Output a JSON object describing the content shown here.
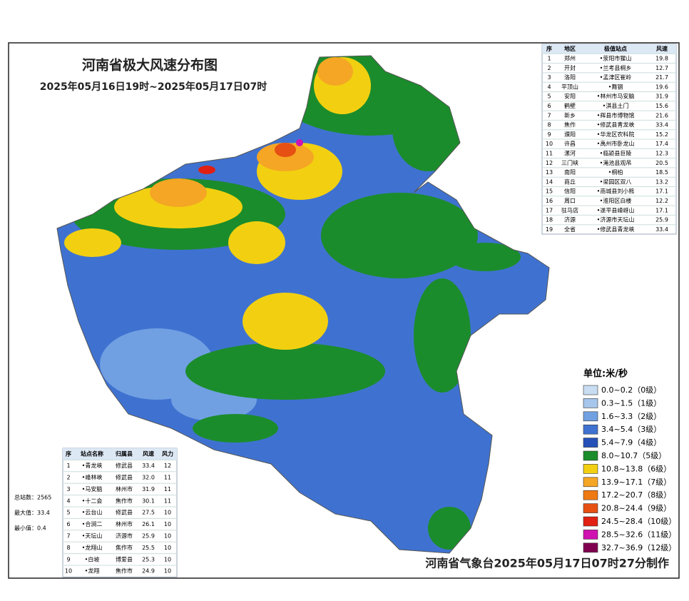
{
  "header": {
    "title": "河南省极大风速分布图",
    "subtitle": "2025年05月16日19时~2025年05月17日07时"
  },
  "region_table": {
    "columns": [
      "序",
      "地区",
      "极值站点",
      "风速"
    ],
    "rows": [
      [
        "1",
        "郑州",
        "•荥阳市猩山",
        "19.8"
      ],
      [
        "2",
        "开封",
        "•兰考县桐乡",
        "12.7"
      ],
      [
        "3",
        "洛阳",
        "•孟津区崔岭",
        "21.7"
      ],
      [
        "4",
        "平顶山",
        "•舞钢",
        "19.6"
      ],
      [
        "5",
        "安阳",
        "•林州市马安脑",
        "31.9"
      ],
      [
        "6",
        "鹤壁",
        "•淇县土门",
        "15.6"
      ],
      [
        "7",
        "新乡",
        "•辉县市博物馆",
        "21.6"
      ],
      [
        "8",
        "焦作",
        "•修武县青龙峡",
        "33.4"
      ],
      [
        "9",
        "濮阳",
        "•华龙区农科院",
        "15.2"
      ],
      [
        "10",
        "许昌",
        "•禹州市卧龙山",
        "17.4"
      ],
      [
        "11",
        "漯河",
        "•临颍县巨陵",
        "12.3"
      ],
      [
        "12",
        "三门峡",
        "•渑池县观吊",
        "20.5"
      ],
      [
        "13",
        "南阳",
        "•桐柏",
        "18.5"
      ],
      [
        "14",
        "商丘",
        "•梁园区双八",
        "13.2"
      ],
      [
        "15",
        "信阳",
        "•商城县刘小熊",
        "17.1"
      ],
      [
        "16",
        "周口",
        "•淮阳区白楼",
        "12.2"
      ],
      [
        "17",
        "驻马店",
        "•遂平县嵖岈山",
        "17.1"
      ],
      [
        "18",
        "济源",
        "•济源市天坛山",
        "25.9"
      ],
      [
        "19",
        "全省",
        "•修武县青龙峡",
        "33.4"
      ]
    ]
  },
  "station_table": {
    "columns": [
      "序",
      "站点名称",
      "归属县",
      "风速",
      "风力"
    ],
    "rows": [
      [
        "1",
        "•青龙峡",
        "修武县",
        "33.4",
        "12"
      ],
      [
        "2",
        "•峰林峡",
        "修武县",
        "32.0",
        "11"
      ],
      [
        "3",
        "•马安脑",
        "林州市",
        "31.9",
        "11"
      ],
      [
        "4",
        "•十二会",
        "焦作市",
        "30.1",
        "11"
      ],
      [
        "5",
        "•云台山",
        "修武县",
        "27.5",
        "10"
      ],
      [
        "6",
        "•合涧二",
        "林州市",
        "26.1",
        "10"
      ],
      [
        "7",
        "•天坛山",
        "济源市",
        "25.9",
        "10"
      ],
      [
        "8",
        "•龙翔山",
        "焦作市",
        "25.5",
        "10"
      ],
      [
        "9",
        "•白坡",
        "博爱县",
        "25.3",
        "10"
      ],
      [
        "10",
        "•龙翔",
        "焦作市",
        "24.9",
        "10"
      ]
    ]
  },
  "stats": [
    "总站数：2565",
    "最大值：33.4",
    "最小值：0.4"
  ],
  "legend": {
    "unit": "单位:米/秒",
    "items": [
      {
        "label": "0.0~0.2（0级）",
        "color": "#c8dcf2"
      },
      {
        "label": "0.3~1.5（1级）",
        "color": "#a6c6ec"
      },
      {
        "label": "1.6~3.3（2级）",
        "color": "#70a0e2"
      },
      {
        "label": "3.4~5.4（3级）",
        "color": "#3f72d0"
      },
      {
        "label": "5.4~7.9（4级）",
        "color": "#2550b8"
      },
      {
        "label": "8.0~10.7（5级）",
        "color": "#1b8c2b"
      },
      {
        "label": "10.8~13.8（6级）",
        "color": "#f2d011"
      },
      {
        "label": "13.9~17.1（7级）",
        "color": "#f5a624"
      },
      {
        "label": "17.2~20.7（8级）",
        "color": "#f07a12"
      },
      {
        "label": "20.8~24.4（9级）",
        "color": "#e65012"
      },
      {
        "label": "24.5~28.4（10级）",
        "color": "#e02012"
      },
      {
        "label": "28.5~32.6（11级）",
        "color": "#d012b0"
      },
      {
        "label": "32.7~36.9（12级）",
        "color": "#800050"
      }
    ]
  },
  "footer": "河南省气象台2025年05月17日07时27分制作"
}
